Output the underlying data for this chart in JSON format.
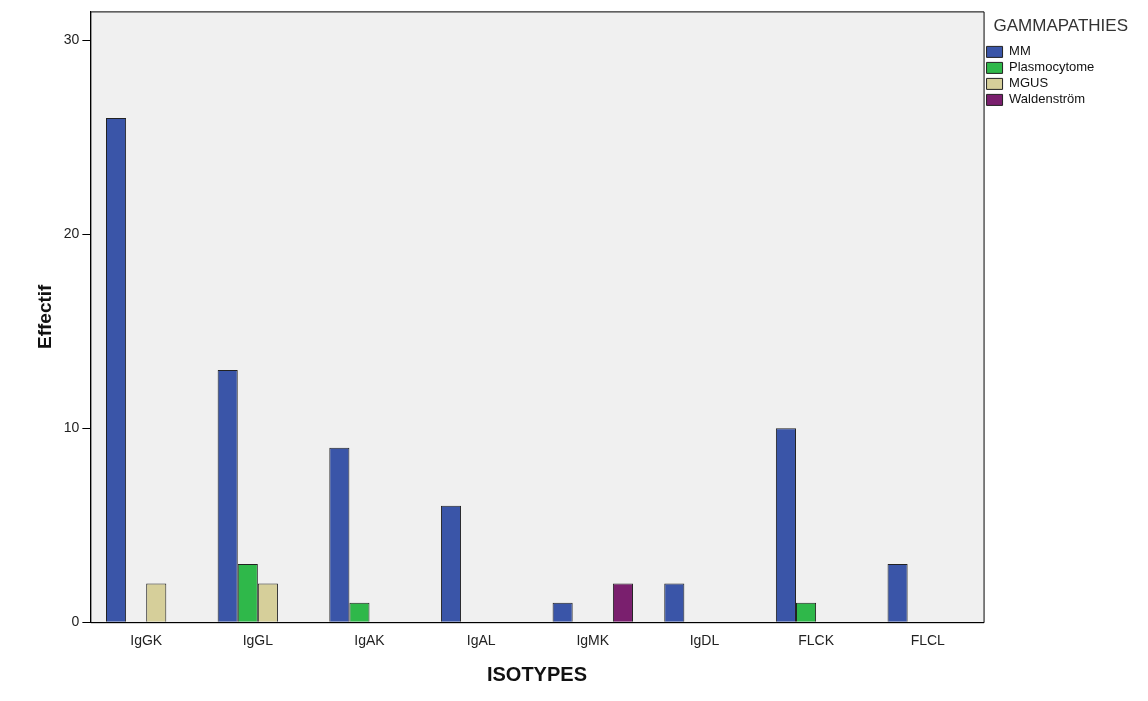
{
  "chart_data": {
    "type": "bar",
    "xlabel": "ISOTYPES",
    "ylabel": "Effectif",
    "legend_title": "GAMMAPATHIES",
    "categories": [
      "IgGK",
      "IgGL",
      "IgAK",
      "IgAL",
      "IgMK",
      "IgDL",
      "FLCK",
      "FLCL"
    ],
    "series": [
      {
        "name": "MM",
        "color": "#3a55a8",
        "values": [
          26,
          13,
          9,
          6,
          1,
          2,
          10,
          3
        ]
      },
      {
        "name": "Plasmocytome",
        "color": "#2fb84a",
        "values": [
          0,
          3,
          1,
          0,
          0,
          0,
          1,
          0
        ]
      },
      {
        "name": "MGUS",
        "color": "#d6cf9a",
        "values": [
          2,
          2,
          0,
          0,
          0,
          0,
          0,
          0
        ]
      },
      {
        "name": "Waldenström",
        "color": "#7a1f6e",
        "values": [
          0,
          0,
          0,
          0,
          2,
          0,
          0,
          0
        ]
      }
    ],
    "ylim": [
      0,
      31.5
    ],
    "yticks": [
      0,
      10,
      20,
      30
    ],
    "grid": false,
    "legend": "top right"
  }
}
